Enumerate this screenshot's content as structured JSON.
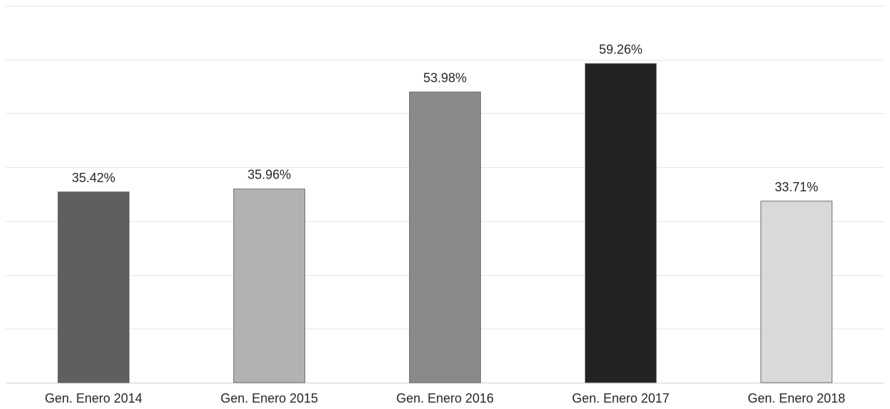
{
  "chart_data": {
    "type": "bar",
    "title": "",
    "xlabel": "",
    "ylabel": "",
    "categories": [
      "Gen. Enero 2014",
      "Gen. Enero 2015",
      "Gen. Enero 2016",
      "Gen. Enero 2017",
      "Gen. Enero 2018"
    ],
    "values": [
      35.42,
      35.96,
      53.98,
      59.26,
      33.71
    ],
    "data_labels": [
      "35.42%",
      "35.96%",
      "53.98%",
      "59.26%",
      "33.71%"
    ],
    "bar_colors": [
      "#5f5f5f",
      "#b2b2b2",
      "#8a8a8a",
      "#232323",
      "#d9d9d9"
    ],
    "ylim": [
      0,
      70
    ],
    "gridline_step": 10,
    "grid": true,
    "legend": "none",
    "y_tick_labels_shown": false
  }
}
